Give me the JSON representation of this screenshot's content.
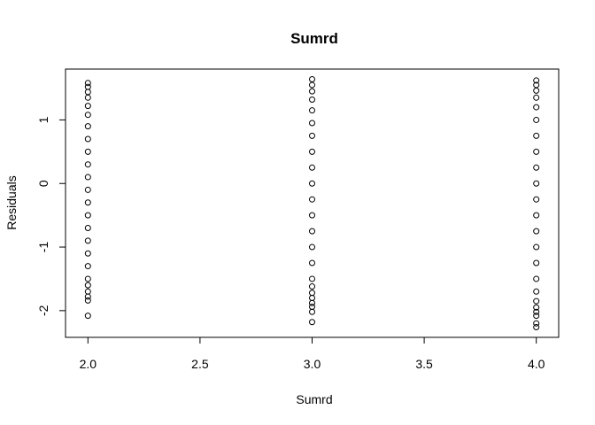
{
  "chart_data": {
    "type": "scatter",
    "title": "Sumrd",
    "xlabel": "Sumrd",
    "ylabel": "Residuals",
    "xlim": [
      1.9,
      4.1
    ],
    "ylim": [
      -2.42,
      1.8
    ],
    "x_ticks": [
      2.0,
      2.5,
      3.0,
      3.5,
      4.0
    ],
    "x_tick_labels": [
      "2.0",
      "2.5",
      "3.0",
      "3.5",
      "4.0"
    ],
    "y_ticks": [
      -2,
      -1,
      0,
      1
    ],
    "y_tick_labels": [
      "-2",
      "-1",
      "0",
      "1"
    ],
    "grid": false,
    "marker": "open-circle",
    "series": [
      {
        "points": [
          {
            "x": 2.0,
            "y": 1.58
          },
          {
            "x": 2.0,
            "y": 1.52
          },
          {
            "x": 2.0,
            "y": 1.44
          },
          {
            "x": 2.0,
            "y": 1.35
          },
          {
            "x": 2.0,
            "y": 1.22
          },
          {
            "x": 2.0,
            "y": 1.08
          },
          {
            "x": 2.0,
            "y": 0.9
          },
          {
            "x": 2.0,
            "y": 0.7
          },
          {
            "x": 2.0,
            "y": 0.5
          },
          {
            "x": 2.0,
            "y": 0.3
          },
          {
            "x": 2.0,
            "y": 0.1
          },
          {
            "x": 2.0,
            "y": -0.1
          },
          {
            "x": 2.0,
            "y": -0.3
          },
          {
            "x": 2.0,
            "y": -0.5
          },
          {
            "x": 2.0,
            "y": -0.7
          },
          {
            "x": 2.0,
            "y": -0.9
          },
          {
            "x": 2.0,
            "y": -1.1
          },
          {
            "x": 2.0,
            "y": -1.3
          },
          {
            "x": 2.0,
            "y": -1.5
          },
          {
            "x": 2.0,
            "y": -1.6
          },
          {
            "x": 2.0,
            "y": -1.7
          },
          {
            "x": 2.0,
            "y": -1.78
          },
          {
            "x": 2.0,
            "y": -1.84
          },
          {
            "x": 2.0,
            "y": -2.08
          },
          {
            "x": 3.0,
            "y": 1.64
          },
          {
            "x": 3.0,
            "y": 1.55
          },
          {
            "x": 3.0,
            "y": 1.45
          },
          {
            "x": 3.0,
            "y": 1.32
          },
          {
            "x": 3.0,
            "y": 1.15
          },
          {
            "x": 3.0,
            "y": 0.95
          },
          {
            "x": 3.0,
            "y": 0.75
          },
          {
            "x": 3.0,
            "y": 0.5
          },
          {
            "x": 3.0,
            "y": 0.25
          },
          {
            "x": 3.0,
            "y": 0.0
          },
          {
            "x": 3.0,
            "y": -0.25
          },
          {
            "x": 3.0,
            "y": -0.5
          },
          {
            "x": 3.0,
            "y": -0.75
          },
          {
            "x": 3.0,
            "y": -1.0
          },
          {
            "x": 3.0,
            "y": -1.25
          },
          {
            "x": 3.0,
            "y": -1.5
          },
          {
            "x": 3.0,
            "y": -1.62
          },
          {
            "x": 3.0,
            "y": -1.72
          },
          {
            "x": 3.0,
            "y": -1.8
          },
          {
            "x": 3.0,
            "y": -1.88
          },
          {
            "x": 3.0,
            "y": -1.94
          },
          {
            "x": 3.0,
            "y": -2.02
          },
          {
            "x": 3.0,
            "y": -2.18
          },
          {
            "x": 4.0,
            "y": 1.62
          },
          {
            "x": 4.0,
            "y": 1.55
          },
          {
            "x": 4.0,
            "y": 1.46
          },
          {
            "x": 4.0,
            "y": 1.35
          },
          {
            "x": 4.0,
            "y": 1.2
          },
          {
            "x": 4.0,
            "y": 1.0
          },
          {
            "x": 4.0,
            "y": 0.75
          },
          {
            "x": 4.0,
            "y": 0.5
          },
          {
            "x": 4.0,
            "y": 0.25
          },
          {
            "x": 4.0,
            "y": 0.0
          },
          {
            "x": 4.0,
            "y": -0.25
          },
          {
            "x": 4.0,
            "y": -0.5
          },
          {
            "x": 4.0,
            "y": -0.75
          },
          {
            "x": 4.0,
            "y": -1.0
          },
          {
            "x": 4.0,
            "y": -1.25
          },
          {
            "x": 4.0,
            "y": -1.5
          },
          {
            "x": 4.0,
            "y": -1.7
          },
          {
            "x": 4.0,
            "y": -1.85
          },
          {
            "x": 4.0,
            "y": -1.95
          },
          {
            "x": 4.0,
            "y": -2.02
          },
          {
            "x": 4.0,
            "y": -2.08
          },
          {
            "x": 4.0,
            "y": -2.2
          },
          {
            "x": 4.0,
            "y": -2.26
          }
        ]
      }
    ]
  }
}
